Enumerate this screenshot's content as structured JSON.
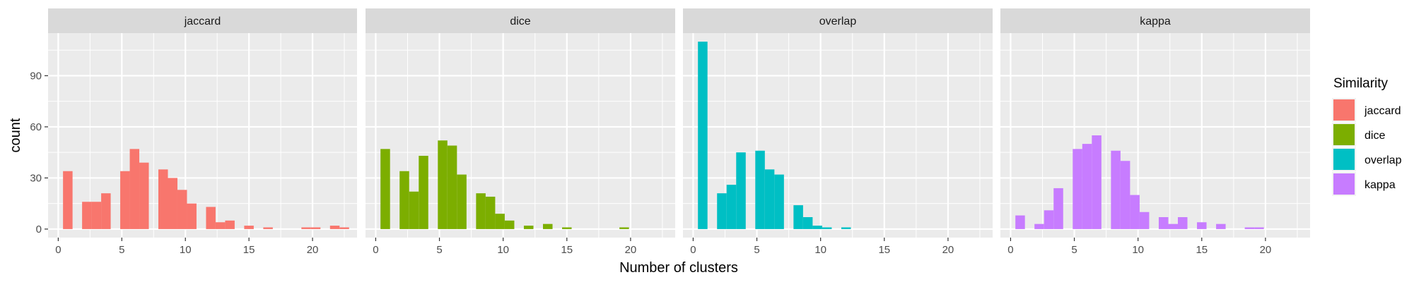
{
  "chart_data": {
    "type": "bar",
    "subtype": "faceted-histogram",
    "xlabel": "Number of clusters",
    "ylabel": "count",
    "xlim": [
      -0.8,
      23.5
    ],
    "ylim": [
      -5,
      115
    ],
    "x_ticks": [
      0,
      5,
      10,
      15,
      20
    ],
    "y_ticks": [
      0,
      30,
      60,
      90
    ],
    "grid": true,
    "bin_width": 0.75,
    "legend": {
      "title": "Similarity",
      "placement": "right",
      "entries": [
        {
          "label": "jaccard",
          "color": "#F8766D"
        },
        {
          "label": "dice",
          "color": "#7CAE00"
        },
        {
          "label": "overlap",
          "color": "#00BFC4"
        },
        {
          "label": "kappa",
          "color": "#C77CFF"
        }
      ]
    },
    "facets": [
      {
        "name": "jaccard",
        "color": "#F8766D",
        "bins": [
          {
            "x": 0.75,
            "count": 34
          },
          {
            "x": 2.25,
            "count": 16
          },
          {
            "x": 3.0,
            "count": 16
          },
          {
            "x": 3.75,
            "count": 21
          },
          {
            "x": 5.25,
            "count": 34
          },
          {
            "x": 6.0,
            "count": 47
          },
          {
            "x": 6.75,
            "count": 39
          },
          {
            "x": 8.25,
            "count": 35
          },
          {
            "x": 9.0,
            "count": 30
          },
          {
            "x": 9.75,
            "count": 23
          },
          {
            "x": 10.5,
            "count": 15
          },
          {
            "x": 12.0,
            "count": 13
          },
          {
            "x": 12.75,
            "count": 4
          },
          {
            "x": 13.5,
            "count": 5
          },
          {
            "x": 15.0,
            "count": 2
          },
          {
            "x": 16.5,
            "count": 1
          },
          {
            "x": 19.5,
            "count": 1
          },
          {
            "x": 20.25,
            "count": 1
          },
          {
            "x": 21.75,
            "count": 2
          },
          {
            "x": 22.5,
            "count": 1
          }
        ]
      },
      {
        "name": "dice",
        "color": "#7CAE00",
        "bins": [
          {
            "x": 0.75,
            "count": 47
          },
          {
            "x": 2.25,
            "count": 34
          },
          {
            "x": 3.0,
            "count": 22
          },
          {
            "x": 3.75,
            "count": 43
          },
          {
            "x": 5.25,
            "count": 52
          },
          {
            "x": 6.0,
            "count": 49
          },
          {
            "x": 6.75,
            "count": 32
          },
          {
            "x": 8.25,
            "count": 21
          },
          {
            "x": 9.0,
            "count": 19
          },
          {
            "x": 9.75,
            "count": 9
          },
          {
            "x": 10.5,
            "count": 5
          },
          {
            "x": 12.0,
            "count": 2
          },
          {
            "x": 13.5,
            "count": 3
          },
          {
            "x": 15.0,
            "count": 1
          },
          {
            "x": 19.5,
            "count": 1
          }
        ]
      },
      {
        "name": "overlap",
        "color": "#00BFC4",
        "bins": [
          {
            "x": 0.75,
            "count": 110
          },
          {
            "x": 2.25,
            "count": 21
          },
          {
            "x": 3.0,
            "count": 26
          },
          {
            "x": 3.75,
            "count": 45
          },
          {
            "x": 5.25,
            "count": 46
          },
          {
            "x": 6.0,
            "count": 35
          },
          {
            "x": 6.75,
            "count": 32
          },
          {
            "x": 8.25,
            "count": 14
          },
          {
            "x": 9.0,
            "count": 7
          },
          {
            "x": 9.75,
            "count": 2
          },
          {
            "x": 10.5,
            "count": 1
          },
          {
            "x": 12.0,
            "count": 1
          }
        ]
      },
      {
        "name": "kappa",
        "color": "#C77CFF",
        "bins": [
          {
            "x": 0.75,
            "count": 8
          },
          {
            "x": 2.25,
            "count": 3
          },
          {
            "x": 3.0,
            "count": 11
          },
          {
            "x": 3.75,
            "count": 24
          },
          {
            "x": 5.25,
            "count": 47
          },
          {
            "x": 6.0,
            "count": 50
          },
          {
            "x": 6.75,
            "count": 55
          },
          {
            "x": 8.25,
            "count": 46
          },
          {
            "x": 9.0,
            "count": 40
          },
          {
            "x": 9.75,
            "count": 20
          },
          {
            "x": 10.5,
            "count": 10
          },
          {
            "x": 12.0,
            "count": 7
          },
          {
            "x": 12.75,
            "count": 3
          },
          {
            "x": 13.5,
            "count": 7
          },
          {
            "x": 15.0,
            "count": 4
          },
          {
            "x": 16.5,
            "count": 3
          },
          {
            "x": 18.75,
            "count": 1
          },
          {
            "x": 19.5,
            "count": 1
          }
        ]
      }
    ]
  }
}
